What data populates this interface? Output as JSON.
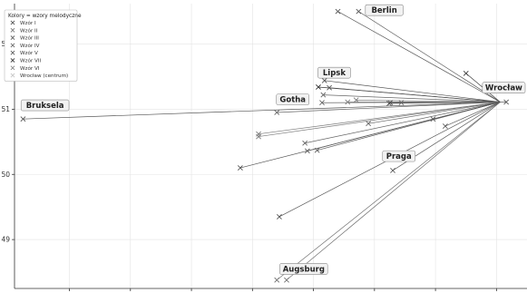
{
  "chart_data": {
    "type": "scatter",
    "xlim": [
      13.05,
      17.25
    ],
    "ylim": [
      48.25,
      52.62
    ],
    "yticks": [
      49,
      50,
      51,
      52
    ],
    "ytick_labels": [
      "49",
      "50",
      "51",
      "52"
    ],
    "xticks": [
      13.5,
      14,
      14.5,
      15,
      15.5,
      16,
      16.5,
      17
    ],
    "grid": true,
    "hub": {
      "x": 17.03,
      "y": 51.11
    },
    "legend": {
      "position": "top-left",
      "title": "Kolory = wzory melodyczne",
      "entries": [
        {
          "label": "Wzór I",
          "color": "#555555"
        },
        {
          "label": "Wzór II",
          "color": "#7a7a7a"
        },
        {
          "label": "Wzór III",
          "color": "#666666"
        },
        {
          "label": "Wzór IV",
          "color": "#707070"
        },
        {
          "label": "Wzór V",
          "color": "#5e5e5e"
        },
        {
          "label": "Wzór VII",
          "color": "#3a3a3a"
        },
        {
          "label": "Wzór VI",
          "color": "#888888"
        },
        {
          "label": "Wrocław (centrum)",
          "color": "#c8c8c8"
        }
      ]
    },
    "points": [
      {
        "x": 13.12,
        "y": 50.85,
        "color": "#555555"
      },
      {
        "x": 14.9,
        "y": 50.1,
        "color": "#555555"
      },
      {
        "x": 15.05,
        "y": 50.58,
        "color": "#7a7a7a"
      },
      {
        "x": 15.05,
        "y": 50.62,
        "color": "#7a7a7a"
      },
      {
        "x": 15.2,
        "y": 50.95,
        "color": "#666666"
      },
      {
        "x": 15.22,
        "y": 49.35,
        "color": "#555555"
      },
      {
        "x": 15.2,
        "y": 48.38,
        "color": "#707070"
      },
      {
        "x": 15.28,
        "y": 48.38,
        "color": "#707070"
      },
      {
        "x": 15.43,
        "y": 50.48,
        "color": "#666666"
      },
      {
        "x": 15.45,
        "y": 50.36,
        "color": "#5e5e5e"
      },
      {
        "x": 15.53,
        "y": 50.37,
        "color": "#5e5e5e"
      },
      {
        "x": 15.54,
        "y": 51.34,
        "color": "#3a3a3a"
      },
      {
        "x": 15.57,
        "y": 51.1,
        "color": "#666666"
      },
      {
        "x": 15.58,
        "y": 51.22,
        "color": "#666666"
      },
      {
        "x": 15.59,
        "y": 51.44,
        "color": "#555555"
      },
      {
        "x": 15.63,
        "y": 51.33,
        "color": "#555555"
      },
      {
        "x": 15.7,
        "y": 52.5,
        "color": "#555555"
      },
      {
        "x": 15.78,
        "y": 51.11,
        "color": "#7a7a7a"
      },
      {
        "x": 15.85,
        "y": 51.14,
        "color": "#7a7a7a"
      },
      {
        "x": 15.87,
        "y": 52.5,
        "color": "#555555"
      },
      {
        "x": 15.95,
        "y": 50.78,
        "color": "#666666"
      },
      {
        "x": 16.12,
        "y": 51.09,
        "color": "#555555"
      },
      {
        "x": 16.13,
        "y": 51.1,
        "color": "#555555"
      },
      {
        "x": 16.15,
        "y": 50.06,
        "color": "#5e5e5e"
      },
      {
        "x": 16.22,
        "y": 51.1,
        "color": "#666666"
      },
      {
        "x": 16.48,
        "y": 50.85,
        "color": "#555555"
      },
      {
        "x": 16.58,
        "y": 50.74,
        "color": "#5e5e5e"
      },
      {
        "x": 16.75,
        "y": 51.55,
        "color": "#3a3a3a"
      },
      {
        "x": 17.08,
        "y": 51.11,
        "color": "#555555"
      }
    ],
    "cities": [
      {
        "name": "Berlin",
        "x": 16.08,
        "y": 52.52
      },
      {
        "name": "Lipsk",
        "x": 15.67,
        "y": 51.56
      },
      {
        "name": "Gotha",
        "x": 15.33,
        "y": 51.15
      },
      {
        "name": "Bruksela",
        "x": 13.3,
        "y": 51.06
      },
      {
        "name": "Praga",
        "x": 16.2,
        "y": 50.28
      },
      {
        "name": "Augsburg",
        "x": 15.42,
        "y": 48.55
      },
      {
        "name": "Wrocław",
        "x": 17.38,
        "y": 51.33
      }
    ]
  }
}
